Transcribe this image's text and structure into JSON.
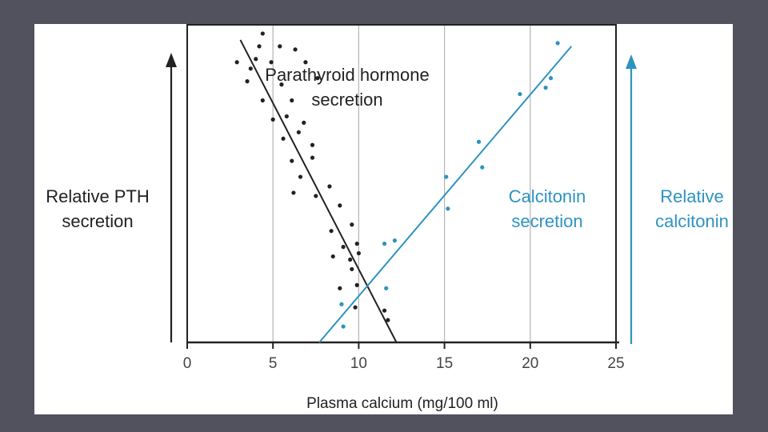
{
  "chart_data": {
    "type": "scatter",
    "xlabel": "Plasma calcium (mg/100  ml)",
    "xlim": [
      0,
      25
    ],
    "x_ticks": [
      "0",
      "5",
      "10",
      "15",
      "20",
      "25"
    ],
    "left_axis_label": "Relative PTH\nsecretion",
    "right_axis_label": "Relative\ncalcitonin",
    "ylim": [
      0,
      1
    ],
    "grid": "vertical",
    "series": [
      {
        "name": "Parathyroid hormone\nsecretion",
        "color": "#222222",
        "points": [
          [
            2.9,
            0.88
          ],
          [
            3.5,
            0.82
          ],
          [
            3.7,
            0.86
          ],
          [
            4.2,
            0.93
          ],
          [
            4.4,
            0.97
          ],
          [
            4.0,
            0.89
          ],
          [
            4.9,
            0.88
          ],
          [
            5.4,
            0.93
          ],
          [
            6.3,
            0.92
          ],
          [
            6.9,
            0.88
          ],
          [
            5.5,
            0.81
          ],
          [
            7.6,
            0.83
          ],
          [
            4.4,
            0.76
          ],
          [
            5.0,
            0.7
          ],
          [
            6.1,
            0.76
          ],
          [
            5.8,
            0.71
          ],
          [
            6.5,
            0.66
          ],
          [
            6.8,
            0.69
          ],
          [
            5.6,
            0.64
          ],
          [
            7.3,
            0.62
          ],
          [
            6.1,
            0.57
          ],
          [
            7.3,
            0.58
          ],
          [
            6.6,
            0.52
          ],
          [
            7.5,
            0.46
          ],
          [
            8.3,
            0.49
          ],
          [
            6.2,
            0.47
          ],
          [
            8.9,
            0.43
          ],
          [
            9.6,
            0.37
          ],
          [
            8.4,
            0.35
          ],
          [
            9.1,
            0.3
          ],
          [
            9.9,
            0.31
          ],
          [
            8.5,
            0.27
          ],
          [
            9.5,
            0.26
          ],
          [
            10.0,
            0.28
          ],
          [
            9.6,
            0.23
          ],
          [
            8.9,
            0.17
          ],
          [
            9.9,
            0.18
          ],
          [
            9.8,
            0.11
          ],
          [
            11.5,
            0.1
          ],
          [
            11.7,
            0.07
          ]
        ],
        "trend": [
          [
            3.1,
            0.95
          ],
          [
            12.2,
            0.0
          ]
        ]
      },
      {
        "name": "Calcitonin\nsecretion",
        "color": "#2e93c0",
        "points": [
          [
            9.0,
            0.12
          ],
          [
            9.1,
            0.05
          ],
          [
            11.5,
            0.31
          ],
          [
            12.1,
            0.32
          ],
          [
            11.6,
            0.17
          ],
          [
            15.1,
            0.52
          ],
          [
            15.2,
            0.42
          ],
          [
            17.0,
            0.63
          ],
          [
            17.2,
            0.55
          ],
          [
            19.4,
            0.78
          ],
          [
            20.9,
            0.8
          ],
          [
            21.2,
            0.83
          ],
          [
            21.6,
            0.94
          ]
        ],
        "trend": [
          [
            7.7,
            0.0
          ],
          [
            22.4,
            0.93
          ]
        ]
      }
    ]
  }
}
